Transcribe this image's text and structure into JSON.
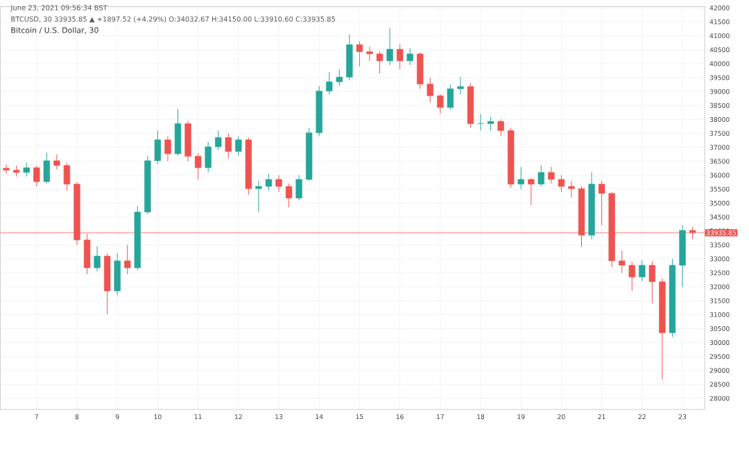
{
  "chart_data": {
    "type": "candlestick",
    "title": "Bitcoin / U.S. Dollar, 30",
    "annotations": [
      "June 23, 2021 09:56:34 BST",
      "BTCUSD, 30  33935.85 ▲ +1897.52 (+4.29%)  O:34032.67  H:34150.00  L:33910.60  C:33935.85"
    ],
    "x": [
      6.25,
      6.5,
      6.75,
      7,
      7.25,
      7.5,
      7.75,
      8,
      8.25,
      8.5,
      8.75,
      9,
      9.25,
      9.5,
      9.75,
      10,
      10.25,
      10.5,
      10.75,
      11,
      11.25,
      11.5,
      11.75,
      12,
      12.25,
      12.5,
      12.75,
      13,
      13.25,
      13.5,
      13.75,
      14,
      14.25,
      14.5,
      14.75,
      15,
      15.25,
      15.5,
      15.75,
      16,
      16.25,
      16.5,
      16.75,
      17,
      17.25,
      17.5,
      17.75,
      18,
      18.25,
      18.5,
      18.75,
      19,
      19.25,
      19.5,
      19.75,
      20,
      20.25,
      20.5,
      20.75,
      21,
      21.25,
      21.5,
      21.75,
      22,
      22.25,
      22.5,
      22.75,
      23,
      23.25
    ],
    "ohlc": [
      [
        36250,
        36400,
        36050,
        36180
      ],
      [
        36180,
        36350,
        35950,
        36100
      ],
      [
        36100,
        36450,
        35950,
        36270
      ],
      [
        36270,
        36350,
        35600,
        35770
      ],
      [
        35770,
        36800,
        35700,
        36520
      ],
      [
        36520,
        36750,
        36200,
        36350
      ],
      [
        36350,
        36450,
        35450,
        35680
      ],
      [
        35680,
        35750,
        33500,
        33680
      ],
      [
        33680,
        33900,
        32450,
        32680
      ],
      [
        32680,
        33450,
        32550,
        33100
      ],
      [
        33100,
        33200,
        31020,
        31850
      ],
      [
        31850,
        33200,
        31700,
        32930
      ],
      [
        32930,
        33500,
        32450,
        32680
      ],
      [
        32680,
        34900,
        32600,
        34680
      ],
      [
        34680,
        36700,
        34600,
        36520
      ],
      [
        36520,
        37600,
        36400,
        37270
      ],
      [
        37270,
        37400,
        36500,
        36770
      ],
      [
        36770,
        38380,
        36700,
        37850
      ],
      [
        37850,
        37950,
        36500,
        36680
      ],
      [
        36680,
        36800,
        35850,
        36270
      ],
      [
        36270,
        37200,
        36100,
        37020
      ],
      [
        37020,
        37600,
        36900,
        37350
      ],
      [
        37350,
        37500,
        36600,
        36850
      ],
      [
        36850,
        37400,
        36700,
        37270
      ],
      [
        37270,
        37350,
        35300,
        35520
      ],
      [
        35520,
        35800,
        34680,
        35600
      ],
      [
        35600,
        36050,
        35450,
        35850
      ],
      [
        35850,
        36000,
        35400,
        35600
      ],
      [
        35600,
        35700,
        34850,
        35180
      ],
      [
        35180,
        36000,
        35100,
        35850
      ],
      [
        35850,
        37700,
        35800,
        37520
      ],
      [
        37520,
        39200,
        37400,
        39020
      ],
      [
        39020,
        39700,
        38900,
        39350
      ],
      [
        39350,
        39800,
        39200,
        39520
      ],
      [
        39520,
        41050,
        39400,
        40680
      ],
      [
        40680,
        40800,
        39900,
        40430
      ],
      [
        40430,
        40600,
        40100,
        40350
      ],
      [
        40350,
        40450,
        39650,
        40100
      ],
      [
        40100,
        41270,
        39950,
        40520
      ],
      [
        40520,
        40700,
        39800,
        40100
      ],
      [
        40100,
        40550,
        39950,
        40350
      ],
      [
        40350,
        40400,
        39100,
        39270
      ],
      [
        39270,
        39500,
        38600,
        38850
      ],
      [
        38850,
        38900,
        38200,
        38430
      ],
      [
        38430,
        39250,
        38350,
        39100
      ],
      [
        39100,
        39520,
        38900,
        39180
      ],
      [
        39180,
        39300,
        37700,
        37850
      ],
      [
        37850,
        38200,
        37600,
        37850
      ],
      [
        37850,
        38100,
        37600,
        37930
      ],
      [
        37930,
        38000,
        37400,
        37600
      ],
      [
        37600,
        37700,
        35550,
        35680
      ],
      [
        35680,
        36300,
        35500,
        35850
      ],
      [
        35850,
        35900,
        34930,
        35680
      ],
      [
        35680,
        36350,
        35600,
        36100
      ],
      [
        36100,
        36300,
        35700,
        35850
      ],
      [
        35850,
        36000,
        35400,
        35600
      ],
      [
        35600,
        35800,
        35200,
        35520
      ],
      [
        35520,
        35600,
        33430,
        33850
      ],
      [
        33850,
        36100,
        33700,
        35680
      ],
      [
        35680,
        35800,
        34200,
        35350
      ],
      [
        35350,
        35400,
        32700,
        32930
      ],
      [
        32930,
        33300,
        32500,
        32770
      ],
      [
        32770,
        32900,
        31850,
        32350
      ],
      [
        32350,
        32950,
        32200,
        32770
      ],
      [
        32770,
        32900,
        31400,
        32180
      ],
      [
        32180,
        32300,
        28680,
        30350
      ],
      [
        30350,
        33000,
        30200,
        32770
      ],
      [
        32770,
        34200,
        32000,
        34020
      ],
      [
        34020,
        34150,
        33700,
        33940
      ]
    ],
    "colors": [
      "#ef5350",
      "#ef5350",
      "#26a69a",
      "#ef5350",
      "#26a69a",
      "#ef5350",
      "#ef5350",
      "#ef5350",
      "#ef5350",
      "#26a69a",
      "#ef5350",
      "#26a69a",
      "#ef5350",
      "#26a69a",
      "#26a69a",
      "#26a69a",
      "#ef5350",
      "#26a69a",
      "#ef5350",
      "#ef5350",
      "#26a69a",
      "#26a69a",
      "#ef5350",
      "#26a69a",
      "#ef5350",
      "#26a69a",
      "#26a69a",
      "#ef5350",
      "#ef5350",
      "#26a69a",
      "#26a69a",
      "#26a69a",
      "#26a69a",
      "#26a69a",
      "#26a69a",
      "#ef5350",
      "#ef5350",
      "#ef5350",
      "#26a69a",
      "#ef5350",
      "#26a69a",
      "#ef5350",
      "#ef5350",
      "#ef5350",
      "#26a69a",
      "#26a69a",
      "#ef5350",
      "#26a69a",
      "#26a69a",
      "#ef5350",
      "#ef5350",
      "#26a69a",
      "#ef5350",
      "#26a69a",
      "#ef5350",
      "#ef5350",
      "#ef5350",
      "#ef5350",
      "#26a69a",
      "#ef5350",
      "#ef5350",
      "#ef5350",
      "#ef5350",
      "#26a69a",
      "#ef5350",
      "#ef5350",
      "#26a69a",
      "#26a69a",
      "#ef5350"
    ],
    "xlim": [
      6.1,
      23.55
    ],
    "xticks": [
      7,
      8,
      9,
      10,
      11,
      12,
      13,
      14,
      15,
      16,
      17,
      18,
      19,
      20,
      21,
      22,
      23
    ],
    "ylim": [
      27600,
      42050
    ],
    "yticks": [
      28000,
      28500,
      29000,
      29500,
      30000,
      30500,
      31000,
      31500,
      32000,
      32500,
      33000,
      33500,
      34000,
      34500,
      35000,
      35500,
      36000,
      36500,
      37000,
      37500,
      38000,
      38500,
      39000,
      39500,
      40000,
      40500,
      41000,
      41500,
      42000
    ],
    "grid": true,
    "ref_lines": [
      {
        "axis": "y",
        "value": 33935.85,
        "label": "33935.85",
        "color": "#ef5350"
      }
    ]
  }
}
